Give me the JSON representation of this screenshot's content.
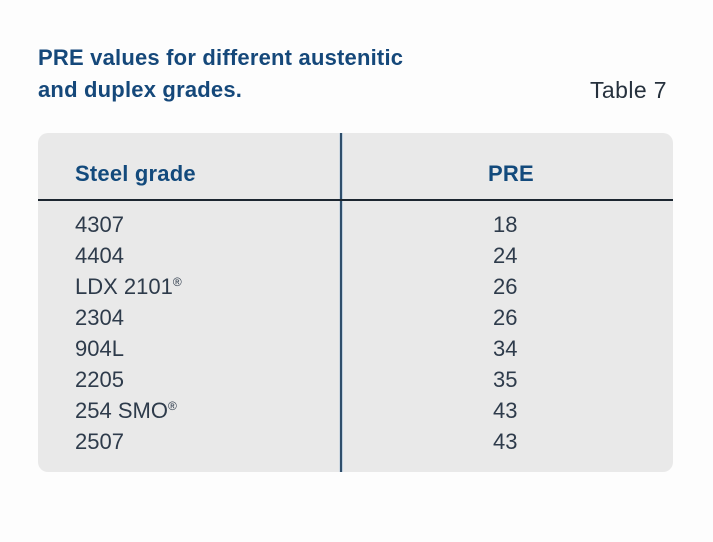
{
  "title": {
    "line1": "PRE values for different austenitic",
    "line2": "and duplex grades.",
    "table_label": "Table 7"
  },
  "table": {
    "columns": {
      "grade": "Steel grade",
      "pre": "PRE"
    },
    "rows": [
      {
        "grade": "4307",
        "mark": "",
        "pre": "18"
      },
      {
        "grade": "4404",
        "mark": "",
        "pre": "24"
      },
      {
        "grade": "LDX 2101",
        "mark": "®",
        "pre": "26"
      },
      {
        "grade": "2304",
        "mark": "",
        "pre": "26"
      },
      {
        "grade": "904L",
        "mark": "",
        "pre": "34"
      },
      {
        "grade": "2205",
        "mark": "",
        "pre": "35"
      },
      {
        "grade": "254 SMO",
        "mark": "®",
        "pre": "43"
      },
      {
        "grade": "2507",
        "mark": "",
        "pre": "43"
      }
    ]
  },
  "colors": {
    "title_navy": "#15487a",
    "header_navy": "#134a7c",
    "row_text": "#2e3b4b",
    "card_background": "#e9e9e9",
    "header_rule": "#1c2630",
    "column_divider": "#2f4e6b"
  }
}
